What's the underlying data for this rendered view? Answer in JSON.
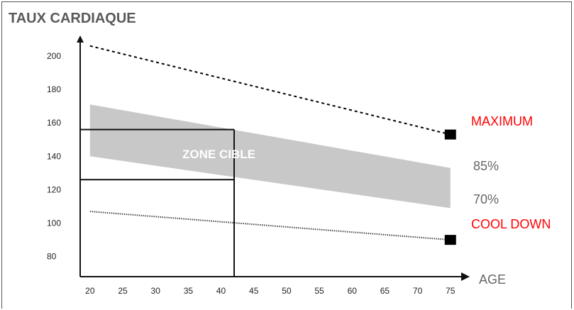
{
  "chart_data": {
    "type": "line",
    "ylabel": "TAUX CARDIAQUE",
    "xlabel": "AGE",
    "x_ticks": [
      20,
      25,
      30,
      35,
      40,
      45,
      50,
      55,
      60,
      65,
      70,
      75
    ],
    "y_ticks": [
      80,
      100,
      120,
      140,
      160,
      180,
      200
    ],
    "xlim": [
      18.5,
      76
    ],
    "ylim": [
      68,
      208
    ],
    "series": [
      {
        "name": "MAXIMUM",
        "style": "dotted",
        "color": "#000000",
        "x": [
          20,
          75
        ],
        "y": [
          206,
          153
        ]
      },
      {
        "name": "COOL DOWN",
        "style": "dotted",
        "color": "#555555",
        "x": [
          20,
          75
        ],
        "y": [
          107,
          90
        ]
      }
    ],
    "band": {
      "upper_label": "85%",
      "lower_label": "70%",
      "color": "#c8c8c8",
      "upper": {
        "x": [
          20,
          75
        ],
        "y": [
          171,
          133
        ]
      },
      "lower": {
        "x": [
          20,
          75
        ],
        "y": [
          140,
          109
        ]
      }
    },
    "zone_label": "ZONE CIBLE",
    "zone_age": 42,
    "zone_upper": 156,
    "zone_lower": 126,
    "markers": [
      {
        "x": 75,
        "y": 153
      },
      {
        "x": 75,
        "y": 90
      }
    ]
  }
}
